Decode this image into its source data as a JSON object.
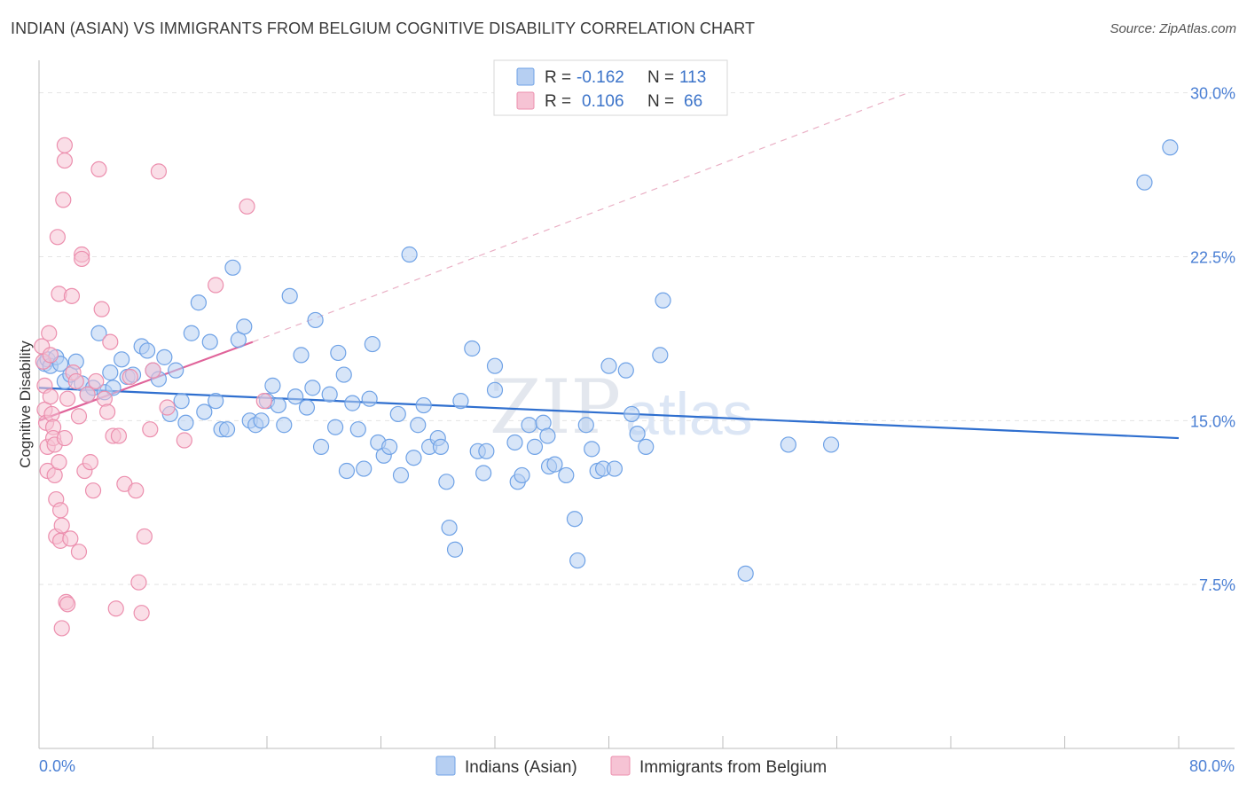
{
  "title": "INDIAN (ASIAN) VS IMMIGRANTS FROM BELGIUM COGNITIVE DISABILITY CORRELATION CHART",
  "source": "Source: ZipAtlas.com",
  "watermark": {
    "zip": "ZIP",
    "atlas": "atlas"
  },
  "colors": {
    "blue": "#6fa2e6",
    "blue_fill": "#b6cff2",
    "blue_line": "#2f6fcf",
    "pink": "#ec8fae",
    "pink_fill": "#f6c3d4",
    "pink_line": "#e0649a",
    "grid": "#e4e4e4",
    "tick_text": "#4a7fd4"
  },
  "legend": {
    "rows": [
      {
        "r_label": "R =",
        "r_value": "-0.162",
        "n_label": "N =",
        "n_value": "113"
      },
      {
        "r_label": "R =",
        "r_value": "0.106",
        "n_label": "N =",
        "n_value": "66"
      }
    ]
  },
  "chart_data": {
    "type": "scatter",
    "title": "INDIAN (ASIAN) VS IMMIGRANTS FROM BELGIUM COGNITIVE DISABILITY CORRELATION CHART",
    "xlabel": "",
    "ylabel": "Cognitive Disability",
    "xlim": [
      0,
      80
    ],
    "ylim": [
      0,
      31
    ],
    "x_tick_labels": [
      "0.0%",
      "80.0%"
    ],
    "y_ticks": [
      7.5,
      15.0,
      22.5,
      30.0
    ],
    "y_tick_labels": [
      "7.5%",
      "15.0%",
      "22.5%",
      "30.0%"
    ],
    "grid": true,
    "legend_position": "top-center",
    "series": [
      {
        "name": "Indians (Asian)",
        "color": "#6fa2e6",
        "trend": {
          "x": [
            0,
            80
          ],
          "y": [
            16.5,
            14.2
          ],
          "style": "solid"
        },
        "points": [
          [
            0.4,
            17.6
          ],
          [
            0.6,
            17.8
          ],
          [
            0.8,
            17.5
          ],
          [
            1.2,
            17.9
          ],
          [
            1.5,
            17.6
          ],
          [
            1.8,
            16.8
          ],
          [
            2.2,
            17.1
          ],
          [
            2.6,
            17.7
          ],
          [
            3.0,
            16.7
          ],
          [
            3.4,
            16.2
          ],
          [
            3.8,
            16.5
          ],
          [
            4.2,
            19.0
          ],
          [
            4.6,
            16.3
          ],
          [
            5.0,
            17.2
          ],
          [
            5.2,
            16.5
          ],
          [
            5.8,
            17.8
          ],
          [
            6.2,
            17.0
          ],
          [
            6.6,
            17.1
          ],
          [
            7.2,
            18.4
          ],
          [
            7.6,
            18.2
          ],
          [
            8.0,
            17.3
          ],
          [
            8.4,
            16.9
          ],
          [
            8.8,
            17.9
          ],
          [
            9.2,
            15.3
          ],
          [
            9.6,
            17.3
          ],
          [
            10.0,
            15.9
          ],
          [
            10.3,
            14.9
          ],
          [
            10.7,
            19.0
          ],
          [
            11.2,
            20.4
          ],
          [
            11.6,
            15.4
          ],
          [
            12.0,
            18.6
          ],
          [
            12.4,
            15.9
          ],
          [
            12.8,
            14.6
          ],
          [
            13.2,
            14.6
          ],
          [
            13.6,
            22.0
          ],
          [
            14.0,
            18.7
          ],
          [
            14.4,
            19.3
          ],
          [
            14.8,
            15.0
          ],
          [
            15.2,
            14.8
          ],
          [
            15.6,
            15.0
          ],
          [
            16.0,
            15.9
          ],
          [
            16.4,
            16.6
          ],
          [
            16.8,
            15.7
          ],
          [
            17.2,
            14.8
          ],
          [
            17.6,
            20.7
          ],
          [
            18.0,
            16.1
          ],
          [
            18.4,
            18.0
          ],
          [
            18.8,
            15.6
          ],
          [
            19.2,
            16.5
          ],
          [
            19.4,
            19.6
          ],
          [
            19.8,
            13.8
          ],
          [
            20.4,
            16.2
          ],
          [
            20.8,
            14.7
          ],
          [
            21.0,
            18.1
          ],
          [
            21.4,
            17.1
          ],
          [
            21.6,
            12.7
          ],
          [
            22.0,
            15.8
          ],
          [
            22.4,
            14.6
          ],
          [
            22.8,
            12.8
          ],
          [
            23.2,
            16.0
          ],
          [
            23.4,
            18.5
          ],
          [
            23.8,
            14.0
          ],
          [
            24.2,
            13.4
          ],
          [
            24.6,
            13.8
          ],
          [
            25.2,
            15.3
          ],
          [
            25.4,
            12.5
          ],
          [
            26.0,
            22.6
          ],
          [
            26.3,
            13.3
          ],
          [
            26.6,
            14.8
          ],
          [
            27.0,
            15.7
          ],
          [
            27.4,
            13.8
          ],
          [
            28.0,
            14.2
          ],
          [
            28.2,
            13.8
          ],
          [
            28.6,
            12.2
          ],
          [
            28.8,
            10.1
          ],
          [
            29.2,
            9.1
          ],
          [
            29.6,
            15.9
          ],
          [
            30.4,
            18.3
          ],
          [
            30.8,
            13.6
          ],
          [
            31.2,
            12.6
          ],
          [
            31.4,
            13.6
          ],
          [
            32.0,
            16.4
          ],
          [
            32.0,
            17.5
          ],
          [
            33.4,
            14.0
          ],
          [
            33.6,
            12.2
          ],
          [
            33.9,
            12.5
          ],
          [
            34.4,
            14.8
          ],
          [
            34.8,
            13.8
          ],
          [
            35.4,
            14.9
          ],
          [
            35.7,
            14.3
          ],
          [
            35.8,
            12.9
          ],
          [
            36.2,
            13.0
          ],
          [
            37.0,
            12.5
          ],
          [
            37.6,
            10.5
          ],
          [
            37.8,
            8.6
          ],
          [
            38.4,
            14.8
          ],
          [
            38.8,
            13.7
          ],
          [
            39.2,
            12.7
          ],
          [
            39.6,
            12.8
          ],
          [
            40.0,
            17.5
          ],
          [
            40.4,
            12.8
          ],
          [
            41.2,
            17.3
          ],
          [
            41.6,
            15.3
          ],
          [
            42.0,
            14.4
          ],
          [
            42.6,
            13.8
          ],
          [
            43.6,
            18.0
          ],
          [
            43.8,
            20.5
          ],
          [
            49.6,
            8.0
          ],
          [
            52.6,
            13.9
          ],
          [
            55.6,
            13.9
          ],
          [
            77.6,
            25.9
          ],
          [
            79.4,
            27.5
          ]
        ]
      },
      {
        "name": "Immigrants from Belgium",
        "color": "#ec8fae",
        "trend": {
          "x": [
            0,
            15
          ],
          "y": [
            15.0,
            18.6
          ],
          "style": "solid",
          "extended": {
            "x": [
              15,
              61
            ],
            "y": [
              18.6,
              30.0
            ],
            "style": "dashed"
          }
        },
        "points": [
          [
            0.2,
            18.4
          ],
          [
            0.3,
            17.7
          ],
          [
            0.4,
            16.6
          ],
          [
            0.4,
            15.5
          ],
          [
            0.5,
            14.9
          ],
          [
            0.6,
            13.8
          ],
          [
            0.6,
            12.7
          ],
          [
            0.7,
            19.0
          ],
          [
            0.8,
            18.0
          ],
          [
            0.8,
            16.1
          ],
          [
            0.9,
            15.3
          ],
          [
            1.0,
            14.7
          ],
          [
            1.0,
            14.2
          ],
          [
            1.1,
            13.9
          ],
          [
            1.1,
            12.5
          ],
          [
            1.2,
            11.4
          ],
          [
            1.2,
            9.7
          ],
          [
            1.3,
            23.4
          ],
          [
            1.4,
            20.8
          ],
          [
            1.4,
            13.1
          ],
          [
            1.5,
            10.9
          ],
          [
            1.5,
            9.5
          ],
          [
            1.6,
            10.2
          ],
          [
            1.6,
            5.5
          ],
          [
            1.7,
            25.1
          ],
          [
            1.8,
            27.6
          ],
          [
            1.8,
            26.9
          ],
          [
            1.8,
            14.2
          ],
          [
            1.9,
            6.7
          ],
          [
            2.0,
            6.6
          ],
          [
            2.0,
            16.0
          ],
          [
            2.2,
            9.6
          ],
          [
            2.3,
            20.7
          ],
          [
            2.4,
            17.2
          ],
          [
            2.6,
            16.8
          ],
          [
            2.8,
            15.2
          ],
          [
            2.8,
            9.0
          ],
          [
            3.0,
            22.6
          ],
          [
            3.0,
            22.4
          ],
          [
            3.2,
            12.7
          ],
          [
            3.4,
            16.2
          ],
          [
            3.6,
            13.1
          ],
          [
            3.8,
            11.8
          ],
          [
            4.0,
            16.8
          ],
          [
            4.2,
            26.5
          ],
          [
            4.4,
            20.1
          ],
          [
            4.6,
            16.0
          ],
          [
            4.8,
            15.4
          ],
          [
            5.0,
            18.6
          ],
          [
            5.2,
            14.3
          ],
          [
            5.4,
            6.4
          ],
          [
            5.6,
            14.3
          ],
          [
            6.0,
            12.1
          ],
          [
            6.4,
            17.0
          ],
          [
            6.8,
            11.8
          ],
          [
            7.0,
            7.6
          ],
          [
            7.2,
            6.2
          ],
          [
            7.4,
            9.7
          ],
          [
            7.8,
            14.6
          ],
          [
            8.0,
            17.3
          ],
          [
            8.4,
            26.4
          ],
          [
            9.0,
            15.6
          ],
          [
            10.2,
            14.1
          ],
          [
            12.4,
            21.2
          ],
          [
            14.6,
            24.8
          ],
          [
            15.8,
            15.9
          ]
        ]
      }
    ]
  },
  "bottom_legend": [
    {
      "label": "Indians (Asian)"
    },
    {
      "label": "Immigrants from Belgium"
    }
  ]
}
